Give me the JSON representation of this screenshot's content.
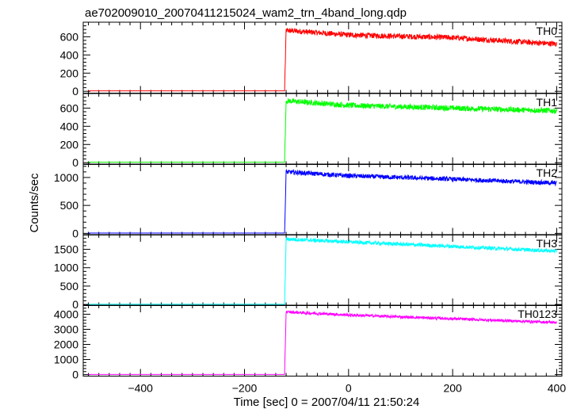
{
  "title": "ae702009010_20070411215024_wam2_trn_4band_long.qdp",
  "ylabel": "Counts/sec",
  "xlabel": "Time [sec] 0 = 2007/04/11 21:50:24",
  "chart_data": {
    "type": "line",
    "title": "ae702009010_20070411215024_wam2_trn_4band_long.qdp",
    "xlabel": "Time [sec] 0 = 2007/04/11 21:50:24",
    "ylabel": "Counts/sec",
    "xlim": [
      -510,
      410
    ],
    "x_ticks": [
      -400,
      -200,
      0,
      200,
      400
    ],
    "x_tick_labels": [
      "−400",
      "−200",
      "0",
      "200",
      "400"
    ],
    "grid": false,
    "panels": [
      {
        "name": "TH0",
        "color": "#ff0000",
        "ylim": [
          -20,
          760
        ],
        "y_ticks": [
          0,
          200,
          400,
          600
        ],
        "y_tick_labels": [
          "0",
          "200",
          "400",
          "600"
        ],
        "onset_x": -123,
        "baseline": 5,
        "trace": [
          [
            -123,
            5
          ],
          [
            -120,
            670
          ],
          [
            0,
            620
          ],
          [
            200,
            590
          ],
          [
            400,
            520
          ]
        ],
        "noise": 30
      },
      {
        "name": "TH1",
        "color": "#00ff00",
        "ylim": [
          -20,
          760
        ],
        "y_ticks": [
          0,
          200,
          400,
          600
        ],
        "y_tick_labels": [
          "0",
          "200",
          "400",
          "600"
        ],
        "onset_x": -123,
        "baseline": 5,
        "trace": [
          [
            -123,
            5
          ],
          [
            -120,
            680
          ],
          [
            0,
            630
          ],
          [
            200,
            600
          ],
          [
            400,
            570
          ]
        ],
        "noise": 30
      },
      {
        "name": "TH2",
        "color": "#0000ff",
        "ylim": [
          -30,
          1240
        ],
        "y_ticks": [
          0,
          500,
          1000
        ],
        "y_tick_labels": [
          "0",
          "500",
          "1000"
        ],
        "onset_x": -123,
        "baseline": 5,
        "trace": [
          [
            -123,
            5
          ],
          [
            -120,
            1100
          ],
          [
            0,
            1030
          ],
          [
            200,
            970
          ],
          [
            400,
            900
          ]
        ],
        "noise": 40
      },
      {
        "name": "TH3",
        "color": "#00ffff",
        "ylim": [
          -30,
          1900
        ],
        "y_ticks": [
          0,
          500,
          1000,
          1500
        ],
        "y_tick_labels": [
          "0",
          "500",
          "1000",
          "1500"
        ],
        "onset_x": -123,
        "baseline": 5,
        "trace": [
          [
            -123,
            5
          ],
          [
            -120,
            1780
          ],
          [
            0,
            1700
          ],
          [
            200,
            1580
          ],
          [
            400,
            1450
          ]
        ],
        "noise": 50
      },
      {
        "name": "TH0123",
        "color": "#ff00ff",
        "ylim": [
          -100,
          4600
        ],
        "y_ticks": [
          0,
          1000,
          2000,
          3000,
          4000
        ],
        "y_tick_labels": [
          "0",
          "1000",
          "2000",
          "3000",
          "4000"
        ],
        "onset_x": -123,
        "baseline": 10,
        "trace": [
          [
            -123,
            10
          ],
          [
            -120,
            4150
          ],
          [
            0,
            3950
          ],
          [
            200,
            3700
          ],
          [
            400,
            3450
          ]
        ],
        "noise": 90
      }
    ]
  }
}
